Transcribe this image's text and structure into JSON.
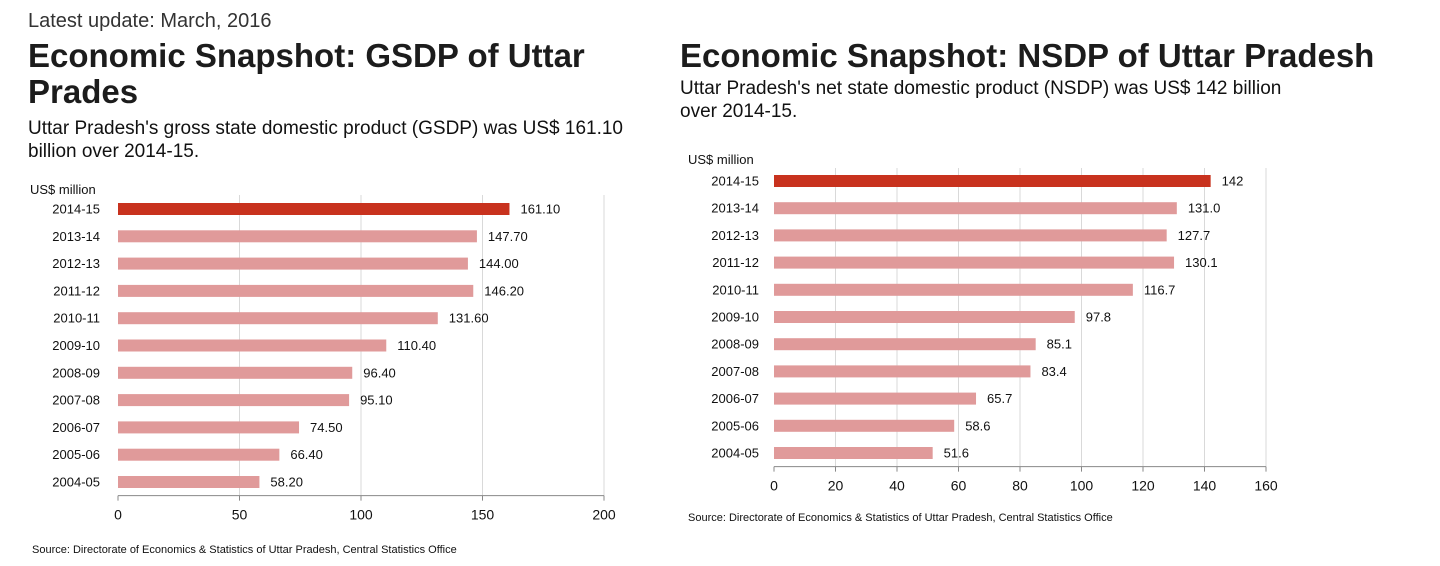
{
  "update_text": "Latest update: March, 2016",
  "colors": {
    "highlight": "#c8321e",
    "bar": "#e09a9a",
    "grid": "#d9d9d9",
    "axis": "#888888"
  },
  "chart_data": [
    {
      "type": "bar",
      "orientation": "horizontal",
      "title": "Economic Snapshot: GSDP of Uttar Prades",
      "subtitle": "Uttar Pradesh's gross state domestic product (GSDP) was US$ 161.10 billion over 2014-15.",
      "unit_label": "US$ million",
      "categories": [
        "2014-15",
        "2013-14",
        "2012-13",
        "2011-12",
        "2010-11",
        "2009-10",
        "2008-09",
        "2007-08",
        "2006-07",
        "2005-06",
        "2004-05"
      ],
      "values": [
        161.1,
        147.7,
        144.0,
        146.2,
        131.6,
        110.4,
        96.4,
        95.1,
        74.5,
        66.4,
        58.2
      ],
      "value_labels": [
        "161.10",
        "147.70",
        "144.00",
        "146.20",
        "131.60",
        "110.40",
        "96.40",
        "95.10",
        "74.50",
        "66.40",
        "58.20"
      ],
      "highlight_index": 0,
      "xlim": [
        0,
        200
      ],
      "xticks": [
        0,
        50,
        100,
        150,
        200
      ],
      "grid": true,
      "source": "Source: Directorate of Economics & Statistics of Uttar Pradesh, Central Statistics Office"
    },
    {
      "type": "bar",
      "orientation": "horizontal",
      "title": "Economic Snapshot: NSDP of Uttar Pradesh",
      "subtitle": "Uttar Pradesh's net state domestic product (NSDP) was US$ 142 billion over 2014-15.",
      "unit_label": "US$ million",
      "categories": [
        "2014-15",
        "2013-14",
        "2012-13",
        "2011-12",
        "2010-11",
        "2009-10",
        "2008-09",
        "2007-08",
        "2006-07",
        "2005-06",
        "2004-05"
      ],
      "values": [
        142,
        131.0,
        127.7,
        130.1,
        116.7,
        97.8,
        85.1,
        83.4,
        65.7,
        58.6,
        51.6
      ],
      "value_labels": [
        "142",
        "131.0",
        "127.7",
        "130.1",
        "116.7",
        "97.8",
        "85.1",
        "83.4",
        "65.7",
        "58.6",
        "51.6"
      ],
      "highlight_index": 0,
      "xlim": [
        0,
        160
      ],
      "xticks": [
        0,
        20,
        40,
        60,
        80,
        100,
        120,
        140,
        160
      ],
      "grid": true,
      "source": "Source: Directorate of Economics & Statistics of Uttar Pradesh, Central Statistics Office"
    }
  ]
}
